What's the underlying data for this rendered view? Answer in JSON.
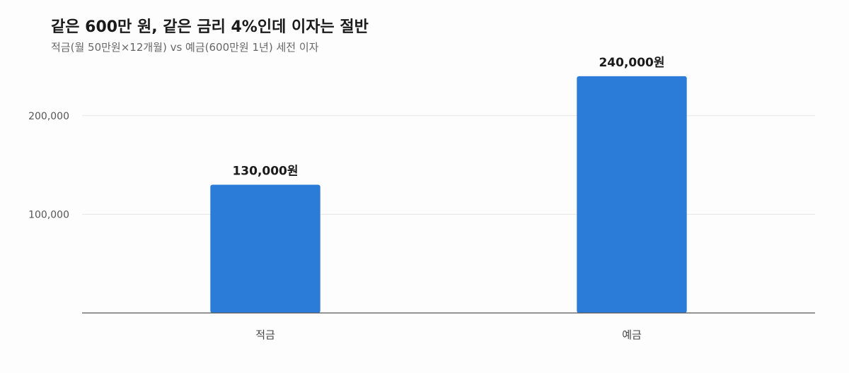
{
  "chart_data": {
    "type": "bar",
    "title": "같은 600만 원, 같은 금리 4%인데 이자는 절반",
    "subtitle": "적금(월 50만원×12개월) vs 예금(600만원 1년) 세전 이자",
    "categories": [
      "적금",
      "예금"
    ],
    "values": [
      130000,
      240000
    ],
    "data_labels": [
      "130,000원",
      "240,000원"
    ],
    "yticks": [
      {
        "value": 100000,
        "label": "100,000"
      },
      {
        "value": 200000,
        "label": "200,000"
      }
    ],
    "ylim": [
      0,
      260000
    ],
    "xlabel": "",
    "ylabel": "",
    "grid": true,
    "legend": "none",
    "colors": {
      "bar": "#2b7bd8",
      "grid": "#e6e6e6",
      "axis": "#555555"
    }
  }
}
